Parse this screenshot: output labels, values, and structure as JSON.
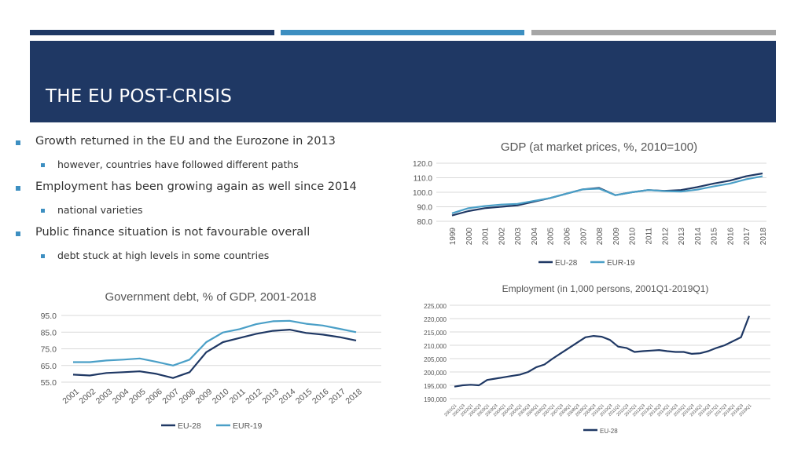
{
  "header": {
    "title": "THE EU POST-CRISIS"
  },
  "bullets": [
    {
      "text": "Growth returned in the EU and the Eurozone in 2013",
      "sub": "however, countries have followed different paths"
    },
    {
      "text": "Employment has been growing again as well since 2014",
      "sub": "national varieties"
    },
    {
      "text": "Public finance situation is not favourable overall",
      "sub": "debt stuck at high levels in some countries"
    }
  ],
  "colors": {
    "eu28": "#1f3864",
    "eur19": "#4a9fc7",
    "banner": "#1f3864",
    "accent": "#3d8fc1"
  },
  "chart_data": [
    {
      "id": "gdp",
      "type": "line",
      "title": "GDP (at market prices, %, 2010=100)",
      "categories": [
        "1999",
        "2000",
        "2001",
        "2002",
        "2003",
        "2004",
        "2005",
        "2006",
        "2007",
        "2008",
        "2009",
        "2010",
        "2011",
        "2012",
        "2013",
        "2014",
        "2015",
        "2016",
        "2017",
        "2018"
      ],
      "y_ticks": [
        "120.0",
        "110.0",
        "100.0",
        "90.0",
        "80.0"
      ],
      "ylim": [
        80,
        120
      ],
      "series": [
        {
          "name": "EU-28",
          "values": [
            84,
            87,
            89,
            90,
            91,
            93.5,
            96,
            99,
            102,
            103,
            98,
            100,
            101.5,
            101,
            101.5,
            103.5,
            106,
            108,
            111,
            113
          ]
        },
        {
          "name": "EUR-19",
          "values": [
            85.5,
            89,
            90.5,
            91.5,
            92,
            94,
            96,
            99,
            102,
            102.5,
            98,
            100,
            101.5,
            100.8,
            100.5,
            101.8,
            104,
            106,
            109,
            111
          ]
        }
      ],
      "legend": [
        "EU-28",
        "EUR-19"
      ]
    },
    {
      "id": "debt",
      "type": "line",
      "title": "Government debt, % of GDP, 2001-2018",
      "categories": [
        "2001",
        "2002",
        "2003",
        "2004",
        "2005",
        "2006",
        "2007",
        "2008",
        "2009",
        "2010",
        "2011",
        "2012",
        "2013",
        "2014",
        "2015",
        "2016",
        "2017",
        "2018"
      ],
      "y_ticks": [
        "95.0",
        "85.0",
        "75.0",
        "65.0",
        "55.0"
      ],
      "ylim": [
        55,
        95
      ],
      "series": [
        {
          "name": "EU-28",
          "values": [
            59.5,
            59,
            60.5,
            61,
            61.5,
            60,
            57.5,
            61,
            73,
            79,
            81.5,
            84,
            85.8,
            86.5,
            84.5,
            83.5,
            82,
            80
          ]
        },
        {
          "name": "EUR-19",
          "values": [
            67,
            67,
            68,
            68.5,
            69.2,
            67.2,
            65,
            68.5,
            79,
            84.8,
            86.8,
            89.8,
            91.5,
            91.8,
            90,
            89,
            87,
            85
          ]
        }
      ],
      "legend": [
        "EU-28",
        "EUR-19"
      ]
    },
    {
      "id": "employment",
      "type": "line",
      "title": "Employment (in 1,000 persons, 2001Q1-2019Q1)",
      "categories": [
        "2001Q1",
        "2001Q3",
        "2002Q1",
        "2002Q3",
        "2003Q1",
        "2003Q3",
        "2004Q1",
        "2004Q3",
        "2005Q1",
        "2005Q3",
        "2006Q1",
        "2006Q3",
        "2007Q1",
        "2007Q3",
        "2008Q1",
        "2008Q3",
        "2009Q1",
        "2009Q3",
        "2010Q1",
        "2010Q3",
        "2011Q1",
        "2011Q3",
        "2012Q1",
        "2012Q3",
        "2013Q1",
        "2013Q3",
        "2014Q1",
        "2014Q3",
        "2015Q1",
        "2015Q3",
        "2016Q1",
        "2016Q3",
        "2017Q1",
        "2017Q3",
        "2018Q1",
        "2018Q3",
        "2019Q1"
      ],
      "y_ticks": [
        "225,000",
        "220,000",
        "215,000",
        "210,000",
        "205,000",
        "200,000",
        "195,000",
        "190,000"
      ],
      "ylim": [
        190000,
        225000
      ],
      "series": [
        {
          "name": "EU-28",
          "values": [
            194500,
            195000,
            195200,
            195000,
            197000,
            197500,
            198000,
            198500,
            199000,
            200000,
            201800,
            202800,
            205000,
            207000,
            209000,
            211000,
            213000,
            213500,
            213200,
            212000,
            209500,
            209000,
            207500,
            207800,
            208000,
            208200,
            207800,
            207500,
            207500,
            206800,
            207000,
            207800,
            209000,
            210000,
            211500,
            213000,
            221000
          ]
        }
      ],
      "legend": [
        "EU-28"
      ]
    }
  ]
}
